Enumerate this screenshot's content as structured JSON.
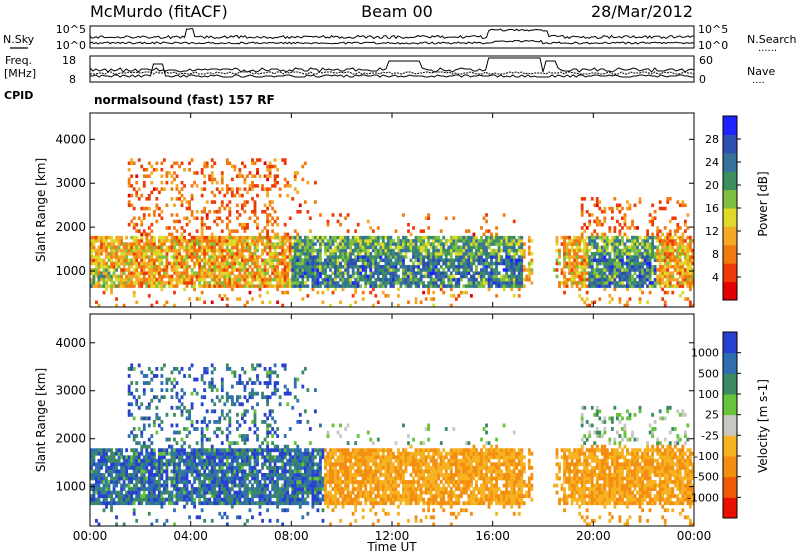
{
  "header": {
    "station": "McMurdo (fitACF)",
    "beam": "Beam 00",
    "date": "28/Mar/2012"
  },
  "side_labels": {
    "nsky": "N.Sky",
    "nsearch": "N.Search",
    "freq_line1": "Freq.",
    "freq_line2": "[MHz]",
    "nave": "Nave",
    "cpid": "CPID",
    "dots": "......",
    "dots_short": "...."
  },
  "noise_panel": {
    "left_ticks": [
      "10^5",
      "10^0"
    ],
    "right_ticks": [
      "10^5",
      "10^0"
    ]
  },
  "freq_panel": {
    "left_ticks": [
      "18",
      "8"
    ],
    "right_ticks": [
      "60",
      "0"
    ]
  },
  "cpid_text": "normalsound (fast) 157 RF",
  "x_axis": {
    "label": "Time UT",
    "ticks": [
      "00:00",
      "04:00",
      "08:00",
      "12:00",
      "16:00",
      "20:00",
      "00:00"
    ],
    "range_hours": [
      0,
      24
    ]
  },
  "chart_data": [
    {
      "type": "heatmap",
      "name": "power",
      "ylabel": "Slant Range [km]",
      "yticks": [
        "1000",
        "2000",
        "3000",
        "4000"
      ],
      "ylim": [
        180,
        4600
      ],
      "xlim": [
        0,
        24
      ],
      "colorbar": {
        "label": "Power [dB]",
        "ticks": [
          "4",
          "8",
          "12",
          "16",
          "20",
          "24",
          "28"
        ],
        "range": [
          0,
          32
        ],
        "colors": [
          "#1e24ff",
          "#2e4fb0",
          "#35719a",
          "#3c9060",
          "#7fbf3f",
          "#dfd92a",
          "#f4a826",
          "#f07a10",
          "#ee3a07",
          "#e30000"
        ]
      },
      "features": [
        {
          "hours": [
            0,
            24
          ],
          "range_km": [
            1000,
            1700
          ],
          "level": "strong main echo band"
        },
        {
          "hours": [
            8,
            17
          ],
          "range_km": [
            700,
            1300
          ],
          "level": "peak ~28 dB"
        },
        {
          "hours": [
            2,
            7
          ],
          "range_km": [
            2000,
            3500
          ],
          "level": "weak scatter"
        },
        {
          "hours": [
            19.5,
            24
          ],
          "range_km": [
            1800,
            2600
          ],
          "level": "weak scatter"
        }
      ]
    },
    {
      "type": "heatmap",
      "name": "velocity",
      "ylabel": "Slant Range [km]",
      "yticks": [
        "1000",
        "2000",
        "3000",
        "4000"
      ],
      "ylim": [
        180,
        4600
      ],
      "xlim": [
        0,
        24
      ],
      "colorbar": {
        "label": "Velocity [m s-1]",
        "ticks": [
          "1000",
          "500",
          "100",
          "25",
          "-25",
          "-100",
          "-500",
          "-1000"
        ],
        "colors": [
          "#2840d0",
          "#2f6fb0",
          "#3c8a62",
          "#66c33a",
          "#c8c8c0",
          "#f6b221",
          "#f48e10",
          "#ef5a08",
          "#e60f00"
        ]
      },
      "features": [
        {
          "hours": [
            0,
            9
          ],
          "range_km": [
            800,
            1800
          ],
          "level": "positive ~100 to 1000 m/s"
        },
        {
          "hours": [
            9.5,
            24
          ],
          "range_km": [
            800,
            1700
          ],
          "level": "negative ~-100 to -500 m/s"
        }
      ]
    }
  ]
}
